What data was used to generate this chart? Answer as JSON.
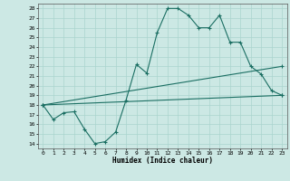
{
  "title": "",
  "xlabel": "Humidex (Indice chaleur)",
  "bg_color": "#cce8e4",
  "line_color": "#1a6e62",
  "grid_color": "#aad4ce",
  "xlim": [
    -0.5,
    23.5
  ],
  "ylim": [
    13.5,
    28.5
  ],
  "xticks": [
    0,
    1,
    2,
    3,
    4,
    5,
    6,
    7,
    8,
    9,
    10,
    11,
    12,
    13,
    14,
    15,
    16,
    17,
    18,
    19,
    20,
    21,
    22,
    23
  ],
  "yticks": [
    14,
    15,
    16,
    17,
    18,
    19,
    20,
    21,
    22,
    23,
    24,
    25,
    26,
    27,
    28
  ],
  "line1_x": [
    0,
    1,
    2,
    3,
    4,
    5,
    6,
    7,
    8,
    9,
    10,
    11,
    12,
    13,
    14,
    15,
    16,
    17,
    18,
    19,
    20,
    21,
    22,
    23
  ],
  "line1_y": [
    18.0,
    16.5,
    17.2,
    17.3,
    15.5,
    14.0,
    14.2,
    15.2,
    18.5,
    22.2,
    21.3,
    25.5,
    28.0,
    28.0,
    27.3,
    26.0,
    26.0,
    27.3,
    24.5,
    24.5,
    22.0,
    21.2,
    19.5,
    19.0
  ],
  "line2_x": [
    0,
    23
  ],
  "line2_y": [
    18.0,
    19.0
  ],
  "line3_x": [
    0,
    23
  ],
  "line3_y": [
    18.0,
    22.0
  ]
}
